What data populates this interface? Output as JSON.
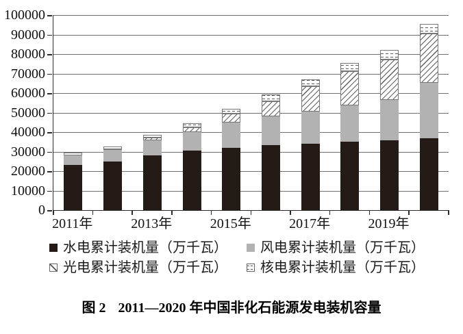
{
  "caption": {
    "prefix": "图 2",
    "title": "2011—2020 年中国非化石能源发电装机容量"
  },
  "chart_data": {
    "type": "bar",
    "stacked": true,
    "title": "图 2　2011—2020 年中国非化石能源发电装机容量",
    "unit": "万千瓦",
    "categories": [
      "2011年",
      "2012年",
      "2013年",
      "2014年",
      "2015年",
      "2016年",
      "2017年",
      "2018年",
      "2019年",
      "2020年"
    ],
    "x_axis_labels_shown": [
      "2011年",
      "2013年",
      "2015年",
      "2017年",
      "2019年"
    ],
    "series": [
      {
        "name": "水电累计装机量（万千瓦）",
        "pattern": "solid-black",
        "values": [
          23298,
          24947,
          28044,
          30486,
          31954,
          33211,
          34119,
          35226,
          35640,
          37016
        ]
      },
      {
        "name": "风电累计装机量（万千瓦）",
        "pattern": "solid-gray",
        "values": [
          4623,
          6083,
          7652,
          9657,
          13075,
          14864,
          16367,
          18426,
          21005,
          28153
        ]
      },
      {
        "name": "光电累计装机量（万千瓦）",
        "pattern": "diagonal-hatch",
        "values": [
          222,
          341,
          1589,
          2486,
          4318,
          7742,
          13025,
          17446,
          20468,
          25343
        ]
      },
      {
        "name": "核电累计装机量（万千瓦）",
        "pattern": "dashed-dots",
        "values": [
          1257,
          1257,
          1466,
          2008,
          2717,
          3364,
          3582,
          4466,
          4874,
          4989
        ]
      }
    ],
    "ylim": [
      0,
      100000
    ],
    "y_ticks": [
      0,
      10000,
      20000,
      30000,
      40000,
      50000,
      60000,
      70000,
      80000,
      90000,
      100000
    ],
    "grid": "horizontal",
    "legend_position": "bottom",
    "colors": {
      "hydro": "#241a16",
      "wind": "#b2b2b2",
      "hatch_line": "#5d5d5d",
      "grid_line": "#6e6e6e",
      "axis": "#2b2b2b",
      "background": "#ffffff"
    }
  }
}
